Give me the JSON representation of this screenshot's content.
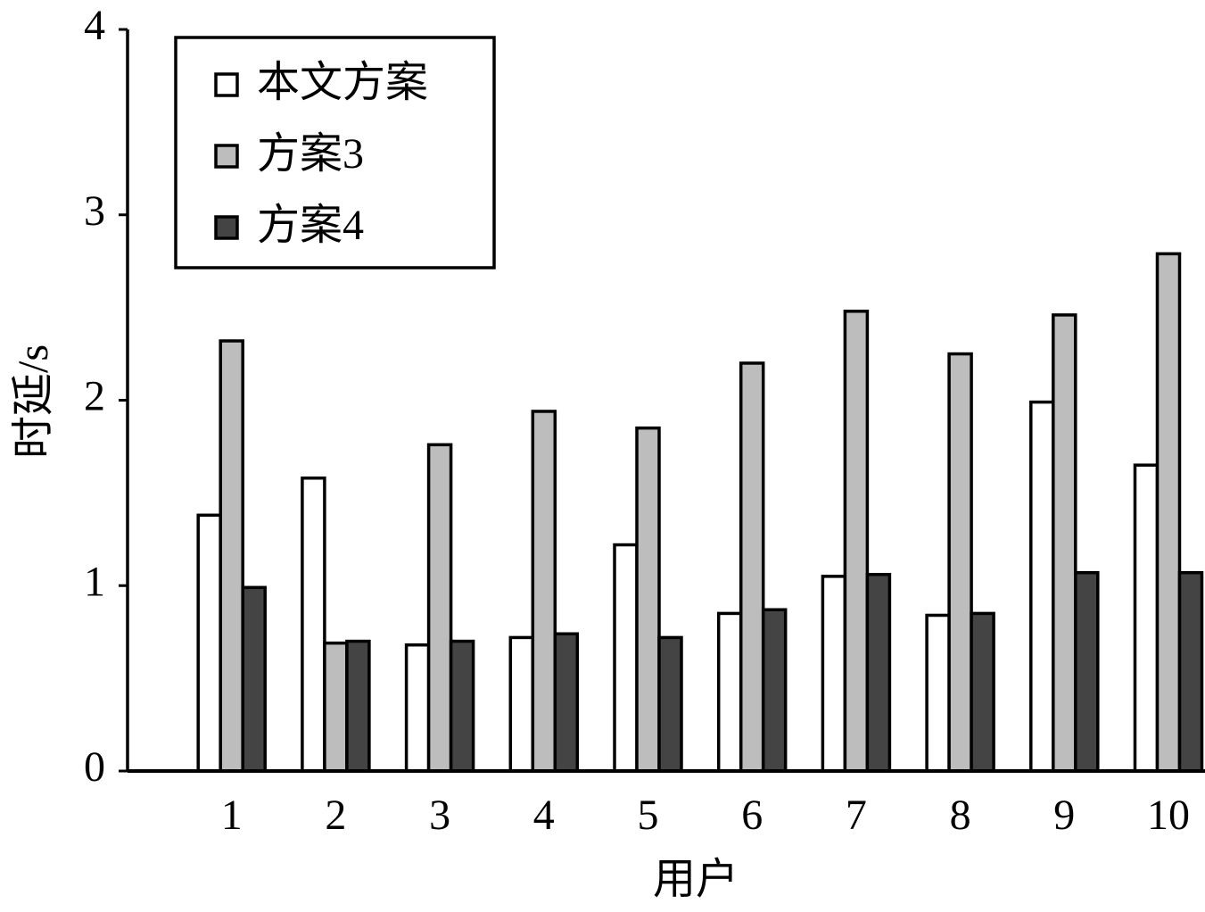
{
  "chart_data": {
    "type": "bar",
    "x_label": "用户",
    "y_label": "时延/s",
    "categories": [
      "1",
      "2",
      "3",
      "4",
      "5",
      "6",
      "7",
      "8",
      "9",
      "10"
    ],
    "series": [
      {
        "name": "本文方案",
        "color": "#ffffff",
        "values": [
          1.38,
          1.58,
          0.68,
          0.72,
          1.22,
          0.85,
          1.05,
          0.84,
          1.99,
          1.65
        ]
      },
      {
        "name": "方案3",
        "color": "#bdbdbd",
        "values": [
          2.32,
          0.69,
          1.76,
          1.94,
          1.85,
          2.2,
          2.48,
          2.25,
          2.46,
          2.79
        ]
      },
      {
        "name": "方案4",
        "color": "#444444",
        "values": [
          0.99,
          0.7,
          0.7,
          0.74,
          0.72,
          0.87,
          1.06,
          0.85,
          1.07,
          1.07
        ]
      }
    ],
    "ylim": [
      0,
      4
    ],
    "yticks": [
      0,
      1,
      2,
      3,
      4
    ],
    "grid": false,
    "legend": "upper left"
  }
}
